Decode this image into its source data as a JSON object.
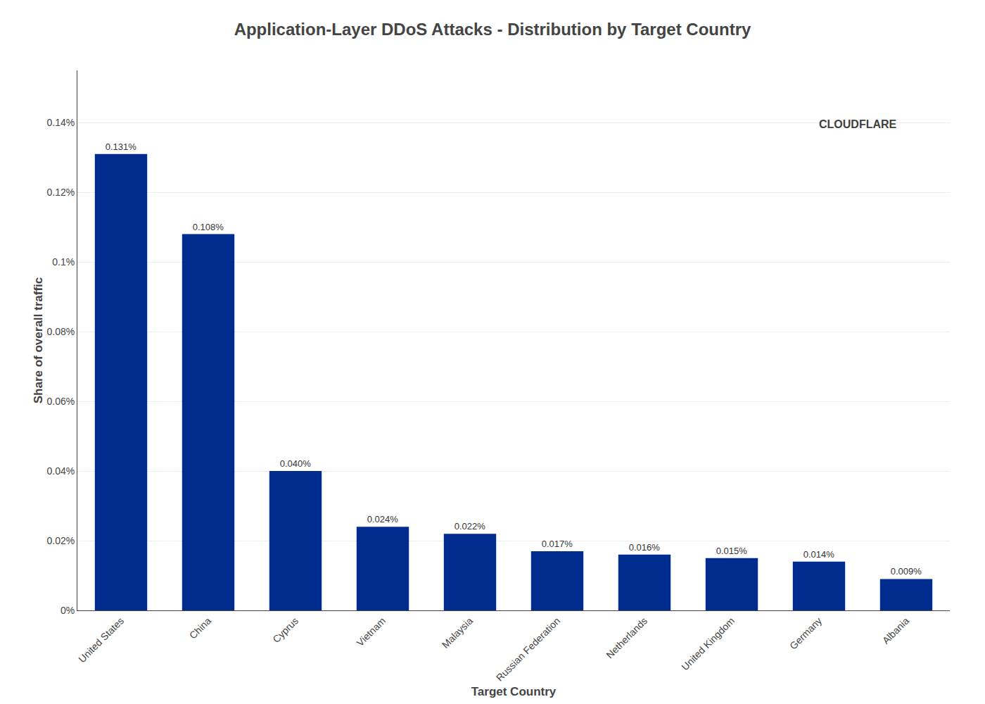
{
  "chart_data": {
    "type": "bar",
    "title": "Application-Layer DDoS Attacks - Distribution by Target Country",
    "xlabel": "Target Country",
    "ylabel": "Share of overall traffic",
    "categories": [
      "United States",
      "China",
      "Cyprus",
      "Vietnam",
      "Malaysia",
      "Russian Federation",
      "Netherlands",
      "United Kingdom",
      "Germany",
      "Albania"
    ],
    "values": [
      0.00131,
      0.00108,
      0.0004,
      0.00024,
      0.00022,
      0.00017,
      0.00016,
      0.00015,
      0.00014,
      9e-05
    ],
    "value_labels": [
      "0.131%",
      "0.108%",
      "0.040%",
      "0.024%",
      "0.022%",
      "0.017%",
      "0.016%",
      "0.015%",
      "0.014%",
      "0.009%"
    ],
    "data_labels": true,
    "color": "#002B8F",
    "ylim": [
      0,
      0.00155
    ],
    "yticks": [
      {
        "value": 0,
        "label": "0%"
      },
      {
        "value": 0.0002,
        "label": "0.02%"
      },
      {
        "value": 0.0004,
        "label": "0.04%"
      },
      {
        "value": 0.0006,
        "label": "0.06%"
      },
      {
        "value": 0.0008,
        "label": "0.08%"
      },
      {
        "value": 0.001,
        "label": "0.1%"
      },
      {
        "value": 0.0012,
        "label": "0.12%"
      },
      {
        "value": 0.0014,
        "label": "0.14%"
      }
    ],
    "grid": true,
    "annotations": [
      {
        "text": "CLOUDFLARE",
        "color": "#404040"
      }
    ]
  }
}
